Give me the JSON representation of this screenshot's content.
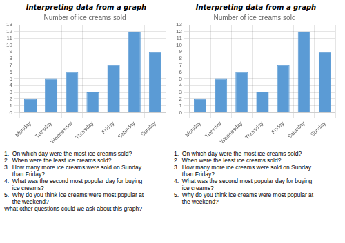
{
  "chart_data": [
    {
      "type": "bar",
      "title": "Number of ice creams sold",
      "subtitle": "Interpreting data from a graph",
      "categories": [
        "Monday",
        "Tuesday",
        "Wednesday",
        "Thursday",
        "Friday",
        "Saturday",
        "Sunday"
      ],
      "values": [
        2,
        5,
        6,
        3,
        7,
        12,
        9
      ],
      "color": "#5b9bd5",
      "ylim": [
        0,
        13
      ],
      "yticks": [
        0,
        1,
        2,
        3,
        4,
        5,
        6,
        7,
        8,
        9,
        10,
        11,
        12,
        13
      ],
      "grid": true,
      "annotations": [
        "1.  On which day were the most ice creams sold?",
        "2.  When were the least ice creams sold?",
        "3.  How many more ice creams were sold on Sunday\n     than Friday?",
        "4.  What was the second most popular day for buying\n     ice creams?",
        "5.  Why do you think ice creams were most popular at\n     the weekend?",
        "What other questions could we ask about this graph?"
      ]
    },
    {
      "type": "bar",
      "title": "Number of ice creams sold",
      "subtitle": "Interpreting data from a graph",
      "categories": [
        "Monday",
        "Tuesday",
        "Wednesday",
        "Thursday",
        "Friday",
        "Saturday",
        "Sunday"
      ],
      "values": [
        2,
        5,
        6,
        3,
        7,
        12,
        9
      ],
      "color": "#5b9bd5",
      "ylim": [
        0,
        13
      ],
      "yticks": [
        0,
        1,
        2,
        3,
        4,
        5,
        6,
        7,
        8,
        9,
        10,
        11,
        12,
        13
      ],
      "grid": true,
      "annotations": [
        "1.  On which day were the most ice creams sold?",
        "2.  When were the least ice creams sold?",
        "3.  How many more ice creams were sold on Sunday\n     than Friday?",
        "4.  What was the second most popular day for buying\n     ice creams?",
        "5.  Why do you think ice creams were most popular at\n     the weekend?"
      ]
    }
  ]
}
